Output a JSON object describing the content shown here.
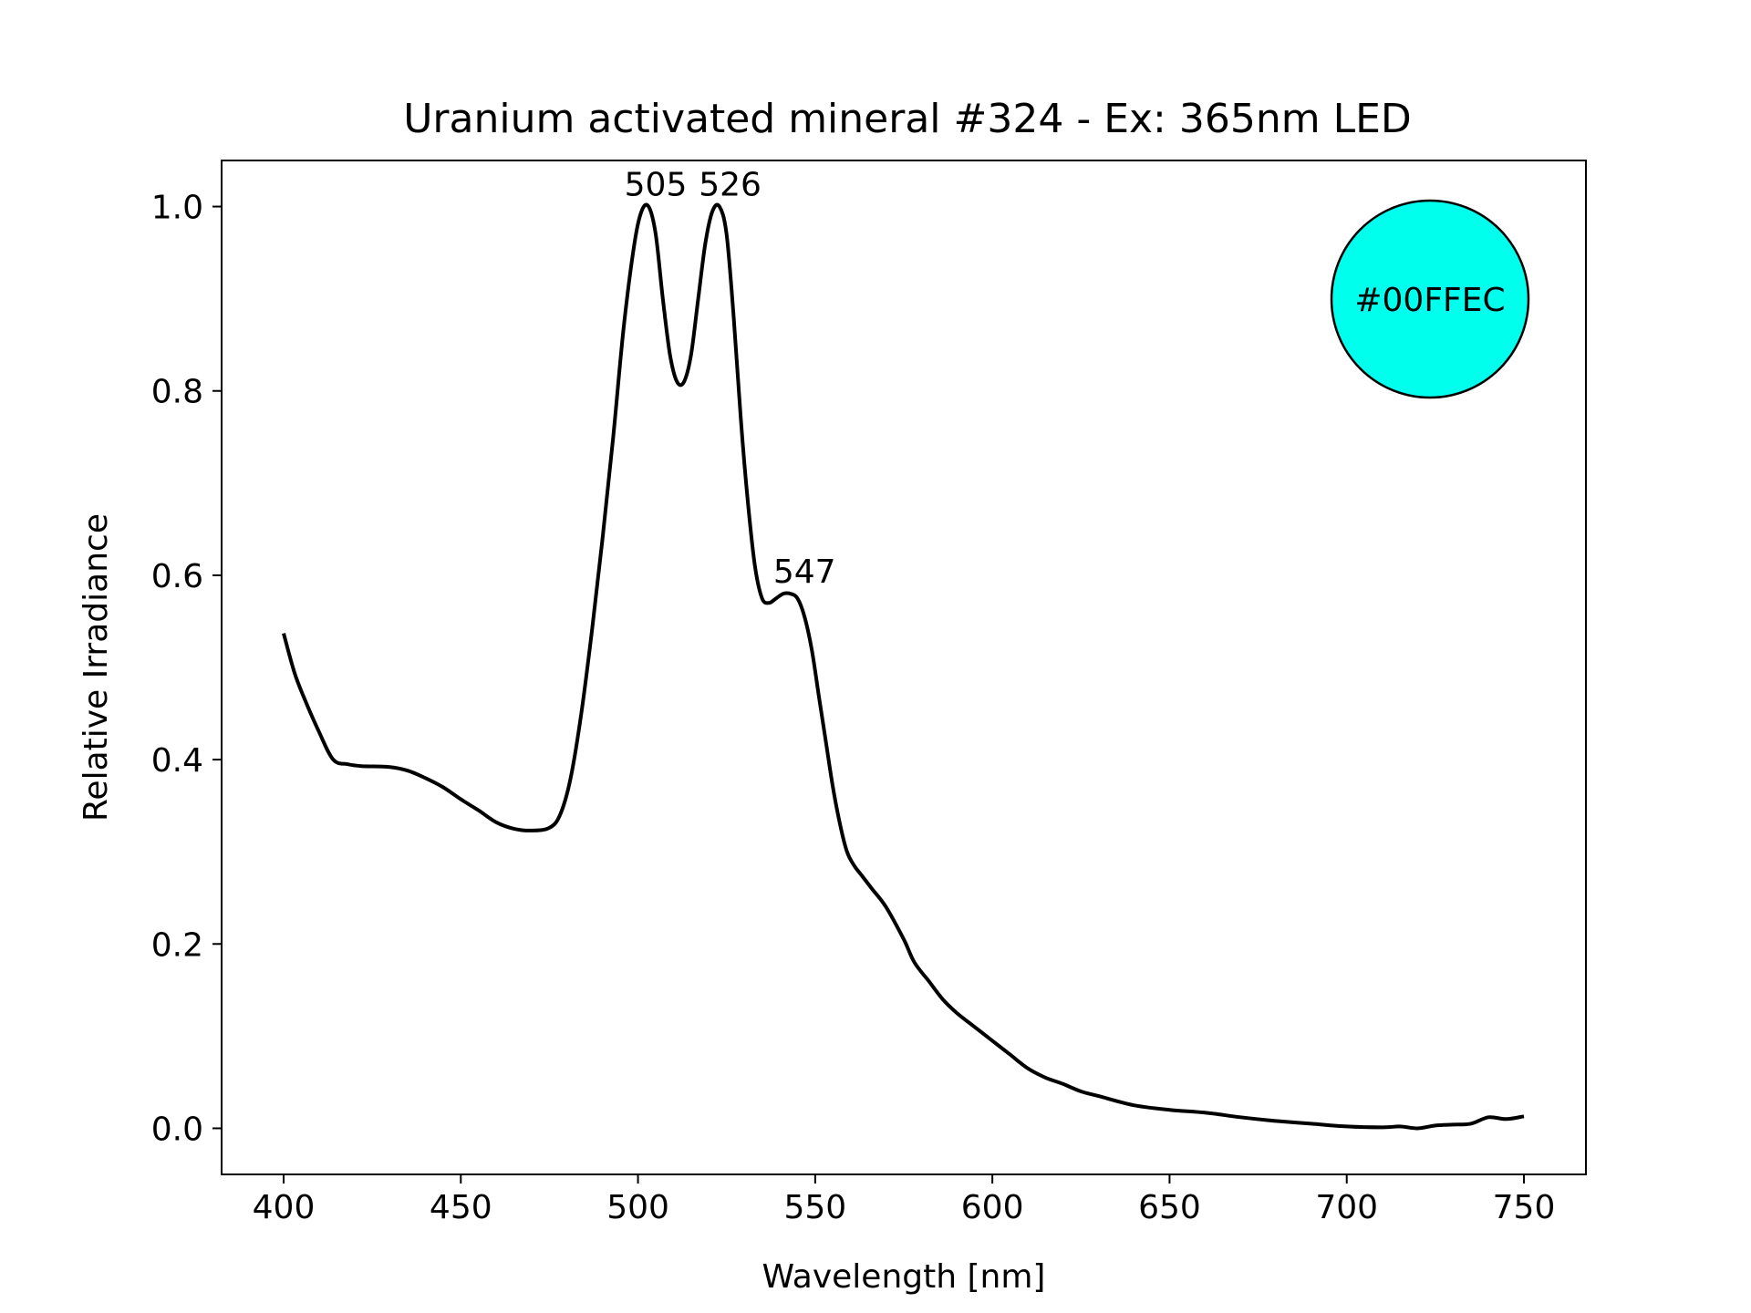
{
  "chart_data": {
    "type": "line",
    "title": "Uranium activated mineral #324 - Ex: 365nm LED",
    "xlabel": "Wavelength [nm]",
    "ylabel": "Relative Irradiance",
    "xlim": [
      382.5,
      767.5
    ],
    "ylim": [
      -0.05,
      1.05
    ],
    "x_ticks": [
      400,
      450,
      500,
      550,
      600,
      650,
      700,
      750
    ],
    "x_tick_labels": [
      "400",
      "450",
      "500",
      "550",
      "600",
      "650",
      "700",
      "750"
    ],
    "y_ticks": [
      0.0,
      0.2,
      0.4,
      0.6,
      0.8,
      1.0
    ],
    "y_tick_labels": [
      "0.0",
      "0.2",
      "0.4",
      "0.6",
      "0.8",
      "1.0"
    ],
    "grid": false,
    "series": [
      {
        "color": "#000000",
        "x": [
          400,
          403,
          406,
          410,
          414,
          418,
          422,
          430,
          435,
          440,
          445,
          450,
          455,
          460,
          465,
          470,
          475,
          478,
          481,
          484,
          487,
          490,
          493,
          496,
          499,
          501,
          503,
          505,
          507,
          509,
          511,
          513,
          515,
          517,
          519,
          521,
          523,
          525,
          527,
          529,
          531,
          533,
          535,
          537,
          539,
          541,
          543,
          545,
          547,
          549,
          551,
          553,
          555,
          557,
          559,
          561,
          563,
          566,
          570,
          575,
          578,
          582,
          586,
          590,
          595,
          600,
          605,
          610,
          615,
          620,
          625,
          630,
          640,
          650,
          660,
          670,
          680,
          690,
          700,
          710,
          715,
          720,
          725,
          730,
          735,
          740,
          745,
          750
        ],
        "y": [
          0.537,
          0.495,
          0.465,
          0.43,
          0.4,
          0.395,
          0.393,
          0.392,
          0.388,
          0.38,
          0.37,
          0.357,
          0.345,
          0.332,
          0.325,
          0.323,
          0.326,
          0.34,
          0.38,
          0.45,
          0.54,
          0.64,
          0.75,
          0.87,
          0.96,
          0.995,
          1.0,
          0.97,
          0.9,
          0.84,
          0.81,
          0.81,
          0.84,
          0.9,
          0.96,
          0.995,
          1.0,
          0.97,
          0.88,
          0.77,
          0.68,
          0.61,
          0.575,
          0.57,
          0.575,
          0.58,
          0.58,
          0.575,
          0.555,
          0.52,
          0.47,
          0.42,
          0.37,
          0.33,
          0.3,
          0.285,
          0.275,
          0.26,
          0.24,
          0.205,
          0.18,
          0.16,
          0.14,
          0.125,
          0.11,
          0.095,
          0.08,
          0.065,
          0.055,
          0.048,
          0.04,
          0.035,
          0.025,
          0.02,
          0.017,
          0.012,
          0.008,
          0.005,
          0.002,
          0.001,
          0.002,
          0.0,
          0.003,
          0.004,
          0.005,
          0.012,
          0.01,
          0.013
        ]
      }
    ],
    "annotations": [
      {
        "text": "505",
        "x": 505,
        "y": 1.0
      },
      {
        "text": "526",
        "x": 526,
        "y": 1.0
      },
      {
        "text": "547",
        "x": 547,
        "y": 0.58
      }
    ],
    "color_swatch": {
      "label": "#00FFEC",
      "color": "#00FFEC"
    }
  }
}
